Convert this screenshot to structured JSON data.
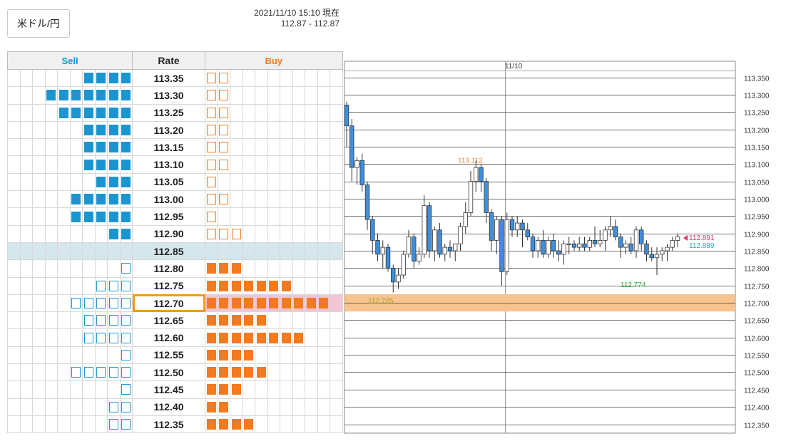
{
  "header": {
    "pair_label": "米ドル/円",
    "timestamp": "2021/11/10 15:10 現在",
    "bid_ask": "112.87 - 112.87"
  },
  "book": {
    "sell_label": "Sell",
    "rate_label": "Rate",
    "buy_label": "Buy",
    "rows": [
      {
        "rate": "113.35",
        "sell": 4,
        "sell_filled": true,
        "buy": 2,
        "buy_filled": false
      },
      {
        "rate": "113.30",
        "sell": 7,
        "sell_filled": true,
        "buy": 2,
        "buy_filled": false
      },
      {
        "rate": "113.25",
        "sell": 6,
        "sell_filled": true,
        "buy": 2,
        "buy_filled": false
      },
      {
        "rate": "113.20",
        "sell": 4,
        "sell_filled": true,
        "buy": 2,
        "buy_filled": false
      },
      {
        "rate": "113.15",
        "sell": 4,
        "sell_filled": true,
        "buy": 2,
        "buy_filled": false
      },
      {
        "rate": "113.10",
        "sell": 4,
        "sell_filled": true,
        "buy": 2,
        "buy_filled": false
      },
      {
        "rate": "113.05",
        "sell": 3,
        "sell_filled": true,
        "buy": 1,
        "buy_filled": false
      },
      {
        "rate": "113.00",
        "sell": 5,
        "sell_filled": true,
        "buy": 2,
        "buy_filled": false
      },
      {
        "rate": "112.95",
        "sell": 5,
        "sell_filled": true,
        "buy": 1,
        "buy_filled": false
      },
      {
        "rate": "112.90",
        "sell": 2,
        "sell_filled": true,
        "buy": 3,
        "buy_filled": false
      },
      {
        "rate": "112.85",
        "sell": 0,
        "sell_filled": true,
        "buy": 0,
        "buy_filled": true,
        "current": true
      },
      {
        "rate": "112.80",
        "sell": 1,
        "sell_filled": false,
        "buy": 3,
        "buy_filled": true
      },
      {
        "rate": "112.75",
        "sell": 3,
        "sell_filled": false,
        "buy": 7,
        "buy_filled": true
      },
      {
        "rate": "112.70",
        "sell": 5,
        "sell_filled": false,
        "buy": 10,
        "buy_filled": true,
        "selected": true
      },
      {
        "rate": "112.65",
        "sell": 4,
        "sell_filled": false,
        "buy": 5,
        "buy_filled": true
      },
      {
        "rate": "112.60",
        "sell": 4,
        "sell_filled": false,
        "buy": 8,
        "buy_filled": true
      },
      {
        "rate": "112.55",
        "sell": 1,
        "sell_filled": false,
        "buy": 4,
        "buy_filled": true
      },
      {
        "rate": "112.50",
        "sell": 5,
        "sell_filled": false,
        "buy": 5,
        "buy_filled": true
      },
      {
        "rate": "112.45",
        "sell": 1,
        "sell_filled": false,
        "buy": 3,
        "buy_filled": true
      },
      {
        "rate": "112.40",
        "sell": 2,
        "sell_filled": false,
        "buy": 2,
        "buy_filled": true
      },
      {
        "rate": "112.35",
        "sell": 2,
        "sell_filled": false,
        "buy": 4,
        "buy_filled": true
      }
    ]
  },
  "chart_data": {
    "type": "candlestick",
    "date_label": "11/10",
    "y_ticks": [
      "113.350",
      "113.300",
      "113.250",
      "113.200",
      "113.150",
      "113.100",
      "113.050",
      "113.000",
      "112.950",
      "112.900",
      "112.850",
      "112.800",
      "112.750",
      "112.700",
      "112.650",
      "112.600",
      "112.550",
      "112.500",
      "112.450",
      "112.400",
      "112.350"
    ],
    "ylim": [
      112.325,
      113.375
    ],
    "highlight_band": [
      112.675,
      112.725
    ],
    "annotations": [
      {
        "label": "113.112",
        "value": 113.112,
        "color": "#f08a3a"
      },
      {
        "label": "112.725",
        "value": 112.725,
        "color": "#a8a020"
      },
      {
        "label": "112.774",
        "value": 112.774,
        "color": "#2aa72a"
      },
      {
        "label": "112.891",
        "value": 112.891,
        "color": "#e8306a"
      },
      {
        "label": "112.889",
        "value": 112.889,
        "color": "#20a8d8"
      }
    ],
    "candles": [
      {
        "o": 113.27,
        "h": 113.28,
        "l": 113.15,
        "c": 113.21
      },
      {
        "o": 113.21,
        "h": 113.23,
        "l": 113.05,
        "c": 113.09
      },
      {
        "o": 113.09,
        "h": 113.12,
        "l": 113.04,
        "c": 113.11
      },
      {
        "o": 113.11,
        "h": 113.13,
        "l": 113.02,
        "c": 113.04
      },
      {
        "o": 113.04,
        "h": 113.05,
        "l": 112.91,
        "c": 112.94
      },
      {
        "o": 112.94,
        "h": 112.95,
        "l": 112.84,
        "c": 112.88
      },
      {
        "o": 112.88,
        "h": 112.9,
        "l": 112.82,
        "c": 112.84
      },
      {
        "o": 112.84,
        "h": 112.88,
        "l": 112.8,
        "c": 112.86
      },
      {
        "o": 112.86,
        "h": 112.87,
        "l": 112.79,
        "c": 112.8
      },
      {
        "o": 112.8,
        "h": 112.81,
        "l": 112.73,
        "c": 112.76
      },
      {
        "o": 112.76,
        "h": 112.8,
        "l": 112.74,
        "c": 112.78
      },
      {
        "o": 112.78,
        "h": 112.85,
        "l": 112.77,
        "c": 112.84
      },
      {
        "o": 112.84,
        "h": 112.91,
        "l": 112.83,
        "c": 112.89
      },
      {
        "o": 112.89,
        "h": 112.9,
        "l": 112.8,
        "c": 112.82
      },
      {
        "o": 112.82,
        "h": 112.86,
        "l": 112.81,
        "c": 112.84
      },
      {
        "o": 112.84,
        "h": 113.01,
        "l": 112.83,
        "c": 112.98
      },
      {
        "o": 112.98,
        "h": 112.99,
        "l": 112.83,
        "c": 112.85
      },
      {
        "o": 112.85,
        "h": 112.92,
        "l": 112.82,
        "c": 112.91
      },
      {
        "o": 112.91,
        "h": 112.93,
        "l": 112.83,
        "c": 112.84
      },
      {
        "o": 112.84,
        "h": 112.87,
        "l": 112.82,
        "c": 112.86
      },
      {
        "o": 112.86,
        "h": 112.88,
        "l": 112.83,
        "c": 112.85
      },
      {
        "o": 112.85,
        "h": 112.87,
        "l": 112.82,
        "c": 112.87
      },
      {
        "o": 112.87,
        "h": 112.93,
        "l": 112.85,
        "c": 112.92
      },
      {
        "o": 112.92,
        "h": 112.99,
        "l": 112.9,
        "c": 112.96
      },
      {
        "o": 112.96,
        "h": 113.08,
        "l": 112.95,
        "c": 113.05
      },
      {
        "o": 113.05,
        "h": 113.11,
        "l": 113.02,
        "c": 113.09
      },
      {
        "o": 113.09,
        "h": 113.1,
        "l": 113.02,
        "c": 113.05
      },
      {
        "o": 113.05,
        "h": 113.06,
        "l": 112.93,
        "c": 112.96
      },
      {
        "o": 112.96,
        "h": 112.97,
        "l": 112.85,
        "c": 112.88
      },
      {
        "o": 112.88,
        "h": 112.95,
        "l": 112.84,
        "c": 112.94
      },
      {
        "o": 112.94,
        "h": 112.95,
        "l": 112.75,
        "c": 112.79
      },
      {
        "o": 112.79,
        "h": 112.96,
        "l": 112.78,
        "c": 112.94
      },
      {
        "o": 112.94,
        "h": 112.95,
        "l": 112.89,
        "c": 112.91
      },
      {
        "o": 112.91,
        "h": 112.95,
        "l": 112.89,
        "c": 112.93
      },
      {
        "o": 112.93,
        "h": 112.94,
        "l": 112.86,
        "c": 112.91
      },
      {
        "o": 112.91,
        "h": 112.93,
        "l": 112.88,
        "c": 112.89
      },
      {
        "o": 112.89,
        "h": 112.9,
        "l": 112.83,
        "c": 112.85
      },
      {
        "o": 112.85,
        "h": 112.89,
        "l": 112.83,
        "c": 112.88
      },
      {
        "o": 112.88,
        "h": 112.91,
        "l": 112.83,
        "c": 112.84
      },
      {
        "o": 112.84,
        "h": 112.89,
        "l": 112.83,
        "c": 112.88
      },
      {
        "o": 112.88,
        "h": 112.9,
        "l": 112.83,
        "c": 112.85
      },
      {
        "o": 112.85,
        "h": 112.88,
        "l": 112.82,
        "c": 112.84
      },
      {
        "o": 112.84,
        "h": 112.88,
        "l": 112.81,
        "c": 112.87
      },
      {
        "o": 112.87,
        "h": 112.89,
        "l": 112.84,
        "c": 112.87
      },
      {
        "o": 112.87,
        "h": 112.88,
        "l": 112.85,
        "c": 112.86
      },
      {
        "o": 112.86,
        "h": 112.89,
        "l": 112.85,
        "c": 112.87
      },
      {
        "o": 112.87,
        "h": 112.89,
        "l": 112.85,
        "c": 112.86
      },
      {
        "o": 112.86,
        "h": 112.89,
        "l": 112.85,
        "c": 112.88
      },
      {
        "o": 112.88,
        "h": 112.92,
        "l": 112.86,
        "c": 112.87
      },
      {
        "o": 112.87,
        "h": 112.91,
        "l": 112.86,
        "c": 112.88
      },
      {
        "o": 112.88,
        "h": 112.92,
        "l": 112.85,
        "c": 112.91
      },
      {
        "o": 112.91,
        "h": 112.95,
        "l": 112.89,
        "c": 112.92
      },
      {
        "o": 112.92,
        "h": 112.94,
        "l": 112.88,
        "c": 112.89
      },
      {
        "o": 112.89,
        "h": 112.9,
        "l": 112.83,
        "c": 112.86
      },
      {
        "o": 112.86,
        "h": 112.88,
        "l": 112.84,
        "c": 112.87
      },
      {
        "o": 112.87,
        "h": 112.89,
        "l": 112.84,
        "c": 112.85
      },
      {
        "o": 112.85,
        "h": 112.92,
        "l": 112.83,
        "c": 112.91
      },
      {
        "o": 112.91,
        "h": 112.92,
        "l": 112.85,
        "c": 112.87
      },
      {
        "o": 112.87,
        "h": 112.88,
        "l": 112.82,
        "c": 112.84
      },
      {
        "o": 112.84,
        "h": 112.86,
        "l": 112.82,
        "c": 112.83
      },
      {
        "o": 112.83,
        "h": 112.86,
        "l": 112.78,
        "c": 112.84
      },
      {
        "o": 112.84,
        "h": 112.86,
        "l": 112.82,
        "c": 112.85
      },
      {
        "o": 112.85,
        "h": 112.87,
        "l": 112.82,
        "c": 112.86
      },
      {
        "o": 112.86,
        "h": 112.89,
        "l": 112.85,
        "c": 112.88
      },
      {
        "o": 112.88,
        "h": 112.9,
        "l": 112.86,
        "c": 112.89
      }
    ]
  }
}
